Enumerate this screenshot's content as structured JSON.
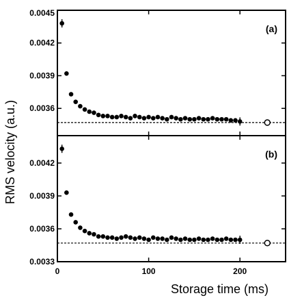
{
  "chart_data": {
    "type": "scatter",
    "xlabel": "Storage time (ms)",
    "ylabel": "RMS velocity (a.u.)",
    "xlim": [
      0,
      250
    ],
    "x_ticks": [
      {
        "value": 0,
        "label": "0"
      },
      {
        "value": 100,
        "label": "100"
      },
      {
        "value": 200,
        "label": "200"
      }
    ],
    "grid": false,
    "panels": [
      {
        "label": "(a)",
        "ylim": [
          0.00335,
          0.0045
        ],
        "y_ticks": [
          {
            "value": 0.0036,
            "label": "0.0036"
          },
          {
            "value": 0.0039,
            "label": "0.0039"
          },
          {
            "value": 0.0042,
            "label": "0.0042"
          },
          {
            "value": 0.0045,
            "label": "0.0045"
          }
        ],
        "reference_line": 0.00347,
        "marker": {
          "x": 230,
          "y": 0.00347
        },
        "series": [
          {
            "x": [
              5,
              10,
              15,
              20,
              25,
              30,
              35,
              40,
              45,
              50,
              55,
              60,
              65,
              70,
              75,
              80,
              85,
              90,
              95,
              100,
              105,
              110,
              115,
              120,
              125,
              130,
              135,
              140,
              145,
              150,
              155,
              160,
              165,
              170,
              175,
              180,
              185,
              190,
              195,
              200
            ],
            "y": [
              0.00438,
              0.00392,
              0.00373,
              0.00366,
              0.00362,
              0.00359,
              0.00357,
              0.00356,
              0.00354,
              0.00353,
              0.00353,
              0.00352,
              0.00352,
              0.00353,
              0.00352,
              0.00351,
              0.00353,
              0.00352,
              0.00351,
              0.00352,
              0.00351,
              0.00352,
              0.00351,
              0.0035,
              0.00352,
              0.00351,
              0.0035,
              0.00351,
              0.0035,
              0.0035,
              0.00351,
              0.0035,
              0.0035,
              0.00351,
              0.0035,
              0.0035,
              0.0035,
              0.00349,
              0.00349,
              0.00348
            ]
          }
        ]
      },
      {
        "label": "(b)",
        "ylim": [
          0.0033,
          0.00445
        ],
        "y_ticks": [
          {
            "value": 0.0033,
            "label": "0.0033"
          },
          {
            "value": 0.0036,
            "label": "0.0036"
          },
          {
            "value": 0.0039,
            "label": "0.0039"
          },
          {
            "value": 0.0042,
            "label": "0.0042"
          }
        ],
        "reference_line": 0.00347,
        "marker": {
          "x": 230,
          "y": 0.00347
        },
        "series": [
          {
            "x": [
              5,
              10,
              15,
              20,
              25,
              30,
              35,
              40,
              45,
              50,
              55,
              60,
              65,
              70,
              75,
              80,
              85,
              90,
              95,
              100,
              105,
              110,
              115,
              120,
              125,
              130,
              135,
              140,
              145,
              150,
              155,
              160,
              165,
              170,
              175,
              180,
              185,
              190,
              195,
              200
            ],
            "y": [
              0.00433,
              0.00393,
              0.00373,
              0.00366,
              0.00361,
              0.00358,
              0.00356,
              0.00355,
              0.00353,
              0.00353,
              0.00352,
              0.00352,
              0.00351,
              0.00352,
              0.00353,
              0.00352,
              0.00351,
              0.00352,
              0.00351,
              0.0035,
              0.00352,
              0.00351,
              0.00351,
              0.0035,
              0.00352,
              0.00351,
              0.0035,
              0.00351,
              0.0035,
              0.0035,
              0.00351,
              0.0035,
              0.0035,
              0.00351,
              0.0035,
              0.0035,
              0.00351,
              0.0035,
              0.0035,
              0.0035
            ]
          }
        ]
      }
    ]
  }
}
